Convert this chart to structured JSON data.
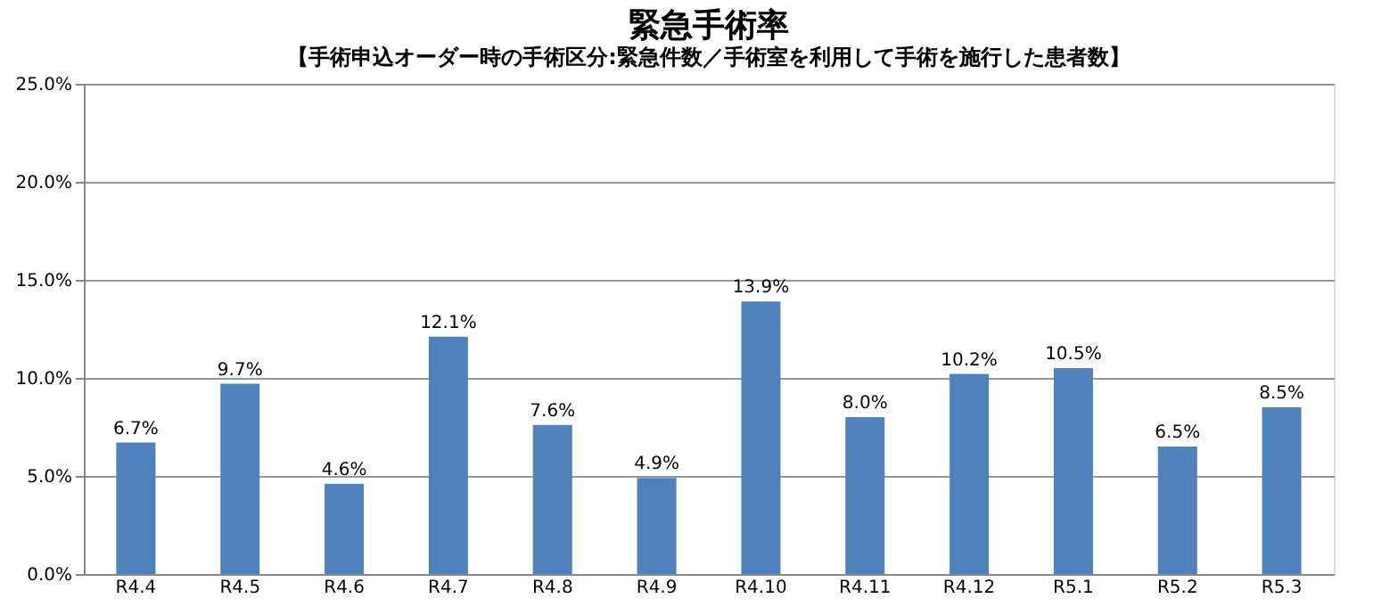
{
  "chart_data": {
    "type": "bar",
    "title": "緊急手術率",
    "subtitle": "【手術申込オーダー時の手術区分:緊急件数／手術室を利用して手術を施行した患者数】",
    "categories": [
      "R4.4",
      "R4.5",
      "R4.6",
      "R4.7",
      "R4.8",
      "R4.9",
      "R4.10",
      "R4.11",
      "R4.12",
      "R5.1",
      "R5.2",
      "R5.3"
    ],
    "values": [
      6.7,
      9.7,
      4.6,
      12.1,
      7.6,
      4.9,
      13.9,
      8.0,
      10.2,
      10.5,
      6.5,
      8.5
    ],
    "value_labels": [
      "6.7%",
      "9.7%",
      "4.6%",
      "12.1%",
      "7.6%",
      "4.9%",
      "13.9%",
      "8.0%",
      "10.2%",
      "10.5%",
      "6.5%",
      "8.5%"
    ],
    "color": "#4f81bd",
    "ylim": [
      0,
      25
    ],
    "yticks": [
      {
        "value": 0,
        "label": "0.0%"
      },
      {
        "value": 5,
        "label": "5.0%"
      },
      {
        "value": 10,
        "label": "10.0%"
      },
      {
        "value": 15,
        "label": "15.0%"
      },
      {
        "value": 20,
        "label": "20.0%"
      },
      {
        "value": 25,
        "label": "25.0%"
      }
    ],
    "grid": "y"
  }
}
